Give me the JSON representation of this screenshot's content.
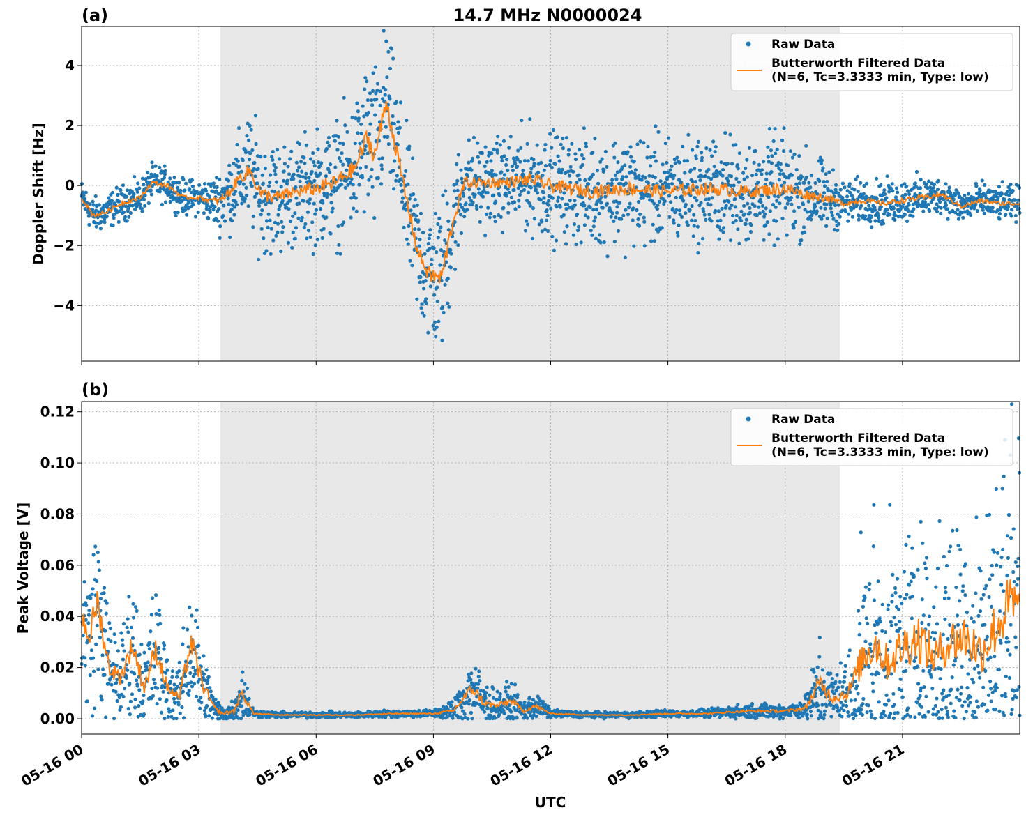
{
  "chart_data": [
    {
      "type": "scatter",
      "panel_label": "(a)",
      "title": "14.7 MHz N0000024",
      "ylabel": "Doppler Shift [Hz]",
      "xlabel": "",
      "x_unit": "hours since 05-16 00 UTC",
      "xlim": [
        0,
        24
      ],
      "ylim": [
        -5.85,
        5.3
      ],
      "yticks": [
        -4,
        -2,
        0,
        2,
        4
      ],
      "ytick_labels": [
        "−4",
        "−2",
        "0",
        "2",
        "4"
      ],
      "grid": true,
      "legend_position": "top-right",
      "shaded_span_hours": [
        3.55,
        19.4
      ],
      "series": [
        {
          "name": "Raw Data",
          "kind": "scatter",
          "color": "#1f77b4",
          "x": [
            0,
            0.3,
            0.6,
            1.0,
            1.5,
            1.8,
            2.2,
            2.6,
            3.0,
            3.3,
            3.55,
            3.8,
            4.0,
            4.3,
            4.6,
            5.0,
            5.5,
            6.0,
            6.5,
            7.0,
            7.3,
            7.5,
            7.8,
            8.0,
            8.3,
            8.6,
            8.9,
            9.2,
            9.5,
            9.8,
            10.2,
            10.8,
            11.5,
            12.0,
            13.0,
            14.0,
            15.0,
            16.0,
            17.0,
            18.0,
            18.5,
            19.0,
            19.5,
            20.0,
            20.5,
            21.0,
            21.5,
            22.0,
            22.5,
            23.0,
            23.5,
            24.0
          ],
          "center": [
            -0.4,
            -1.0,
            -0.9,
            -0.6,
            -0.4,
            0.1,
            0.0,
            -0.4,
            -0.4,
            -0.5,
            -0.5,
            -0.2,
            0.2,
            0.5,
            -0.3,
            -0.4,
            -0.2,
            -0.1,
            0.1,
            0.6,
            1.6,
            1.0,
            2.8,
            1.5,
            -0.4,
            -2.2,
            -3.0,
            -3.1,
            -1.2,
            0.1,
            0.1,
            0.1,
            0.2,
            0.0,
            -0.2,
            -0.1,
            -0.2,
            -0.1,
            -0.2,
            -0.1,
            -0.3,
            -0.4,
            -0.6,
            -0.5,
            -0.6,
            -0.5,
            -0.4,
            -0.3,
            -0.7,
            -0.5,
            -0.6,
            -0.6
          ],
          "spread": [
            0.4,
            0.4,
            0.4,
            0.4,
            0.4,
            0.4,
            0.4,
            0.4,
            0.4,
            0.5,
            0.7,
            0.9,
            1.0,
            1.3,
            1.3,
            1.3,
            1.2,
            1.3,
            1.4,
            1.5,
            1.8,
            2.0,
            1.8,
            1.6,
            1.5,
            1.5,
            1.7,
            1.8,
            1.5,
            1.0,
            1.0,
            1.0,
            1.2,
            1.2,
            1.2,
            1.3,
            1.2,
            1.2,
            1.2,
            1.2,
            1.0,
            0.8,
            0.5,
            0.5,
            0.5,
            0.5,
            0.5,
            0.4,
            0.4,
            0.4,
            0.4,
            0.4
          ]
        },
        {
          "name": "Butterworth Filtered Data\n(N=6, Tc=3.3333 min, Type: low)",
          "kind": "line",
          "color": "#ff7f0e",
          "x": [
            0,
            0.3,
            0.6,
            1.0,
            1.5,
            1.8,
            2.2,
            2.6,
            3.0,
            3.3,
            3.55,
            3.8,
            4.0,
            4.3,
            4.6,
            5.0,
            5.5,
            6.0,
            6.5,
            7.0,
            7.3,
            7.5,
            7.8,
            8.0,
            8.3,
            8.6,
            8.9,
            9.2,
            9.5,
            9.8,
            10.2,
            10.8,
            11.5,
            12.0,
            13.0,
            14.0,
            15.0,
            16.0,
            17.0,
            18.0,
            18.5,
            19.0,
            19.5,
            20.0,
            20.5,
            21.0,
            21.5,
            22.0,
            22.5,
            23.0,
            23.5,
            24.0
          ],
          "y": [
            -0.4,
            -1.0,
            -0.9,
            -0.6,
            -0.4,
            0.1,
            0.0,
            -0.4,
            -0.4,
            -0.5,
            -0.5,
            -0.2,
            0.2,
            0.5,
            -0.3,
            -0.4,
            -0.2,
            -0.1,
            0.1,
            0.6,
            1.6,
            1.0,
            2.8,
            1.5,
            -0.4,
            -2.2,
            -3.0,
            -3.1,
            -1.2,
            0.1,
            0.1,
            0.1,
            0.2,
            0.0,
            -0.2,
            -0.1,
            -0.2,
            -0.1,
            -0.2,
            -0.1,
            -0.3,
            -0.4,
            -0.6,
            -0.5,
            -0.6,
            -0.5,
            -0.4,
            -0.3,
            -0.7,
            -0.5,
            -0.6,
            -0.6
          ]
        }
      ]
    },
    {
      "type": "scatter",
      "panel_label": "(b)",
      "title": "",
      "ylabel": "Peak Voltage [V]",
      "xlabel": "UTC",
      "x_unit": "hours since 05-16 00 UTC",
      "xlim": [
        0,
        24
      ],
      "ylim": [
        -0.006,
        0.124
      ],
      "yticks": [
        0.0,
        0.02,
        0.04,
        0.06,
        0.08,
        0.1,
        0.12
      ],
      "ytick_labels": [
        "0.00",
        "0.02",
        "0.04",
        "0.06",
        "0.08",
        "0.10",
        "0.12"
      ],
      "xticks": [
        0,
        3,
        6,
        9,
        12,
        15,
        18,
        21
      ],
      "xtick_labels": [
        "05-16 00",
        "05-16 03",
        "05-16 06",
        "05-16 09",
        "05-16 12",
        "05-16 15",
        "05-16 18",
        "05-16 21"
      ],
      "grid": true,
      "legend_position": "top-right",
      "shaded_span_hours": [
        3.55,
        19.4
      ],
      "series": [
        {
          "name": "Raw Data",
          "kind": "scatter",
          "color": "#1f77b4",
          "x": [
            0,
            0.2,
            0.4,
            0.7,
            1.0,
            1.3,
            1.6,
            1.9,
            2.2,
            2.5,
            2.8,
            3.1,
            3.4,
            3.6,
            3.9,
            4.1,
            4.4,
            5.0,
            6.0,
            7.0,
            8.0,
            9.0,
            9.5,
            10.0,
            10.3,
            10.6,
            11.0,
            11.3,
            11.6,
            12.0,
            13.0,
            14.0,
            15.0,
            16.0,
            17.0,
            17.5,
            18.0,
            18.5,
            18.9,
            19.2,
            19.6,
            20.0,
            20.3,
            20.6,
            21.0,
            21.4,
            21.8,
            22.2,
            22.6,
            23.0,
            23.4,
            23.8,
            24.0
          ],
          "center": [
            0.035,
            0.03,
            0.045,
            0.02,
            0.015,
            0.028,
            0.012,
            0.026,
            0.012,
            0.008,
            0.03,
            0.012,
            0.004,
            0.002,
            0.003,
            0.01,
            0.002,
            0.0015,
            0.0015,
            0.0015,
            0.002,
            0.002,
            0.003,
            0.012,
            0.006,
            0.005,
            0.006,
            0.003,
            0.005,
            0.002,
            0.0015,
            0.0015,
            0.002,
            0.002,
            0.003,
            0.003,
            0.003,
            0.004,
            0.012,
            0.008,
            0.01,
            0.02,
            0.028,
            0.02,
            0.025,
            0.03,
            0.022,
            0.028,
            0.03,
            0.025,
            0.035,
            0.04,
            0.035
          ],
          "spread": [
            0.022,
            0.02,
            0.025,
            0.015,
            0.012,
            0.02,
            0.012,
            0.02,
            0.01,
            0.008,
            0.02,
            0.012,
            0.004,
            0.002,
            0.004,
            0.008,
            0.001,
            0.0008,
            0.0008,
            0.0008,
            0.001,
            0.001,
            0.003,
            0.01,
            0.006,
            0.004,
            0.005,
            0.003,
            0.004,
            0.001,
            0.0008,
            0.0008,
            0.001,
            0.001,
            0.002,
            0.002,
            0.002,
            0.003,
            0.015,
            0.008,
            0.01,
            0.03,
            0.035,
            0.03,
            0.035,
            0.04,
            0.03,
            0.035,
            0.04,
            0.035,
            0.045,
            0.05,
            0.045
          ]
        },
        {
          "name": "Butterworth Filtered Data\n(N=6, Tc=3.3333 min, Type: low)",
          "kind": "line",
          "color": "#ff7f0e",
          "x": [
            0,
            0.2,
            0.4,
            0.7,
            1.0,
            1.3,
            1.6,
            1.9,
            2.2,
            2.5,
            2.8,
            3.1,
            3.4,
            3.6,
            3.9,
            4.1,
            4.4,
            5.0,
            6.0,
            7.0,
            8.0,
            9.0,
            9.5,
            10.0,
            10.3,
            10.6,
            11.0,
            11.3,
            11.6,
            12.0,
            13.0,
            14.0,
            15.0,
            16.0,
            17.0,
            17.5,
            18.0,
            18.5,
            18.9,
            19.2,
            19.6,
            20.0,
            20.3,
            20.6,
            21.0,
            21.4,
            21.8,
            22.2,
            22.6,
            23.0,
            23.4,
            23.8,
            24.0
          ],
          "y": [
            0.04,
            0.032,
            0.046,
            0.02,
            0.016,
            0.029,
            0.012,
            0.027,
            0.012,
            0.008,
            0.03,
            0.013,
            0.004,
            0.002,
            0.003,
            0.01,
            0.002,
            0.0015,
            0.0015,
            0.0015,
            0.002,
            0.002,
            0.003,
            0.012,
            0.006,
            0.005,
            0.007,
            0.003,
            0.005,
            0.002,
            0.0015,
            0.0015,
            0.002,
            0.002,
            0.003,
            0.003,
            0.003,
            0.004,
            0.014,
            0.008,
            0.01,
            0.024,
            0.03,
            0.022,
            0.028,
            0.032,
            0.024,
            0.03,
            0.032,
            0.026,
            0.036,
            0.046,
            0.04
          ]
        }
      ]
    }
  ]
}
